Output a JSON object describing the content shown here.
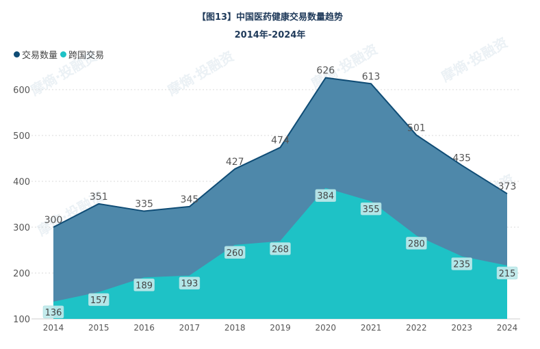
{
  "chart_data": {
    "type": "area",
    "title": "【图13】中国医药健康交易数量趋势",
    "subtitle": "2014年-2024年",
    "categories": [
      "2014",
      "2015",
      "2016",
      "2017",
      "2018",
      "2019",
      "2020",
      "2021",
      "2022",
      "2023",
      "2024"
    ],
    "series": [
      {
        "name": "交易数量",
        "color": "#0f4c75",
        "fill": "#4a86a8",
        "values": [
          300,
          351,
          335,
          345,
          427,
          474,
          626,
          613,
          501,
          435,
          373
        ]
      },
      {
        "name": "跨国交易",
        "color": "#1ec2c6",
        "fill": "#1ec2c6",
        "values": [
          136,
          157,
          189,
          193,
          260,
          268,
          384,
          355,
          280,
          235,
          215
        ]
      }
    ],
    "yticks": [
      100,
      200,
      300,
      400,
      500,
      600
    ],
    "ylim": [
      100,
      650
    ],
    "grid": true,
    "legend": "top-left"
  },
  "watermark": "摩熵·投融资"
}
